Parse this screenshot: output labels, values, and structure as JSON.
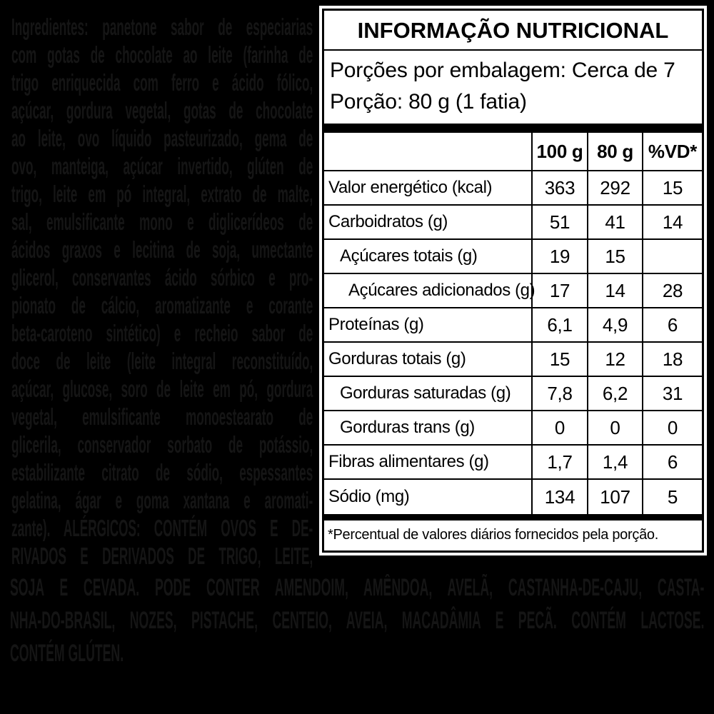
{
  "colors": {
    "background": "#000000",
    "ingredients_text": "#151515",
    "panel_bg": "#ffffff",
    "panel_text": "#000000"
  },
  "ingredients": {
    "left_lines": [
      "Ingredientes: panetone sabor de especiarias",
      "com gotas de chocolate ao leite (farinha de",
      "trigo enriquecida com ferro e ácido fólico,",
      "açúcar, gordura vegetal, gotas de chocolate",
      "ao leite, ovo líquido pasteurizado, gema de",
      "ovo, manteiga, açúcar invertido, glúten de",
      "trigo, leite em pó integral, extrato de malte,",
      "sal, emulsificante mono e diglicerídeos de",
      "ácidos graxos e lecitina de soja, umectante",
      "glicerol, conservantes ácido sórbico e pro-",
      "pionato de cálcio, aromatizante e corante",
      "beta-caroteno sintético) e recheio sabor de",
      "doce de leite (leite integral reconstituído,",
      "açúcar, glucose, soro de leite em pó, gordura",
      "vegetal, emulsificante monoestearato de",
      "glicerila, conservador sorbato de potássio,",
      "estabilizante citrato de sódio, espessantes",
      "gelatina, ágar e goma xantana e aromati-",
      "zante). ALÉRGICOS: CONTÉM OVOS E DE-",
      "RIVADOS E DERIVADOS DE TRIGO, LEITE,"
    ],
    "bottom_lines": [
      "SOJA E CEVADA. PODE CONTER AMENDOIM, AMÊNDOA, AVELÃ, CASTANHA-DE-CAJU, CASTA-",
      "NHA-DO-BRASIL, NOZES, PISTACHE, CENTEIO, AVEIA, MACADÂMIA E PECÃ. CONTÉM LACTOSE.",
      "CONTÉM GLÚTEN."
    ]
  },
  "panel": {
    "title": "INFORMAÇÃO NUTRICIONAL",
    "servings_line1": "Porções por embalagem: Cerca de 7",
    "servings_line2": "Porção: 80 g (1 fatia)",
    "footnote": "*Percentual de valores diários fornecidos pela porção.",
    "table": {
      "columns": [
        "100 g",
        "80 g",
        "%VD*"
      ],
      "rows": [
        {
          "label": "Valor energético (kcal)",
          "indent": 0,
          "values": [
            "363",
            "292",
            "15"
          ]
        },
        {
          "label": "Carboidratos (g)",
          "indent": 0,
          "values": [
            "51",
            "41",
            "14"
          ]
        },
        {
          "label": "Açúcares totais (g)",
          "indent": 1,
          "values": [
            "19",
            "15",
            ""
          ]
        },
        {
          "label": "Açúcares adicionados (g)",
          "indent": 2,
          "values": [
            "17",
            "14",
            "28"
          ]
        },
        {
          "label": "Proteínas (g)",
          "indent": 0,
          "values": [
            "6,1",
            "4,9",
            "6"
          ]
        },
        {
          "label": "Gorduras totais (g)",
          "indent": 0,
          "values": [
            "15",
            "12",
            "18"
          ]
        },
        {
          "label": "Gorduras saturadas (g)",
          "indent": 1,
          "values": [
            "7,8",
            "6,2",
            "31"
          ]
        },
        {
          "label": "Gorduras trans (g)",
          "indent": 1,
          "values": [
            "0",
            "0",
            "0"
          ]
        },
        {
          "label": "Fibras alimentares (g)",
          "indent": 0,
          "values": [
            "1,7",
            "1,4",
            "6"
          ]
        },
        {
          "label": "Sódio (mg)",
          "indent": 0,
          "values": [
            "134",
            "107",
            "5"
          ]
        }
      ]
    }
  }
}
